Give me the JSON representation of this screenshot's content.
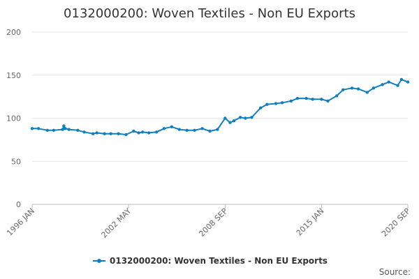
{
  "chart_data": {
    "type": "line",
    "title": "0132000200: Woven Textiles - Non EU Exports",
    "xlabel": "",
    "ylabel": "",
    "ylim": [
      0,
      200
    ],
    "yticks": [
      0,
      50,
      100,
      150,
      200
    ],
    "xticks": [
      "1996 JAN",
      "2002 MAY",
      "2008 SEP",
      "2015 JAN",
      "2020 SEP"
    ],
    "grid": true,
    "legend": "bottom-center",
    "color": "#0f7fbf",
    "series": [
      {
        "name": "0132000200: Woven Textiles - Non EU Exports",
        "x": [
          "1996-01",
          "1996-06",
          "1997-01",
          "1997-06",
          "1998-01",
          "1998-02",
          "1998-03",
          "1998-06",
          "1999-01",
          "1999-06",
          "2000-01",
          "2000-04",
          "2000-10",
          "2001-03",
          "2001-09",
          "2002-03",
          "2002-09",
          "2003-01",
          "2003-04",
          "2003-09",
          "2004-03",
          "2004-09",
          "2005-03",
          "2005-09",
          "2006-03",
          "2006-09",
          "2007-03",
          "2007-09",
          "2008-03",
          "2008-09",
          "2009-01",
          "2009-04",
          "2009-09",
          "2010-01",
          "2010-06",
          "2011-01",
          "2011-06",
          "2012-01",
          "2012-06",
          "2013-01",
          "2013-06",
          "2014-01",
          "2014-06",
          "2015-01",
          "2015-06",
          "2016-01",
          "2016-06",
          "2017-01",
          "2017-06",
          "2018-01",
          "2018-06",
          "2019-01",
          "2019-06",
          "2020-01",
          "2020-04",
          "2020-09"
        ],
        "values": [
          88,
          88,
          86,
          86,
          87,
          91,
          88,
          87,
          86,
          84,
          82,
          83,
          82,
          82,
          82,
          81,
          85,
          83,
          84,
          83,
          84,
          88,
          90,
          87,
          86,
          86,
          88,
          85,
          87,
          100,
          95,
          97,
          101,
          100,
          101,
          112,
          116,
          117,
          118,
          120,
          123,
          123,
          122,
          122,
          120,
          126,
          133,
          135,
          134,
          130,
          135,
          139,
          142,
          138,
          145,
          142
        ]
      }
    ],
    "source_label": "Source:"
  }
}
